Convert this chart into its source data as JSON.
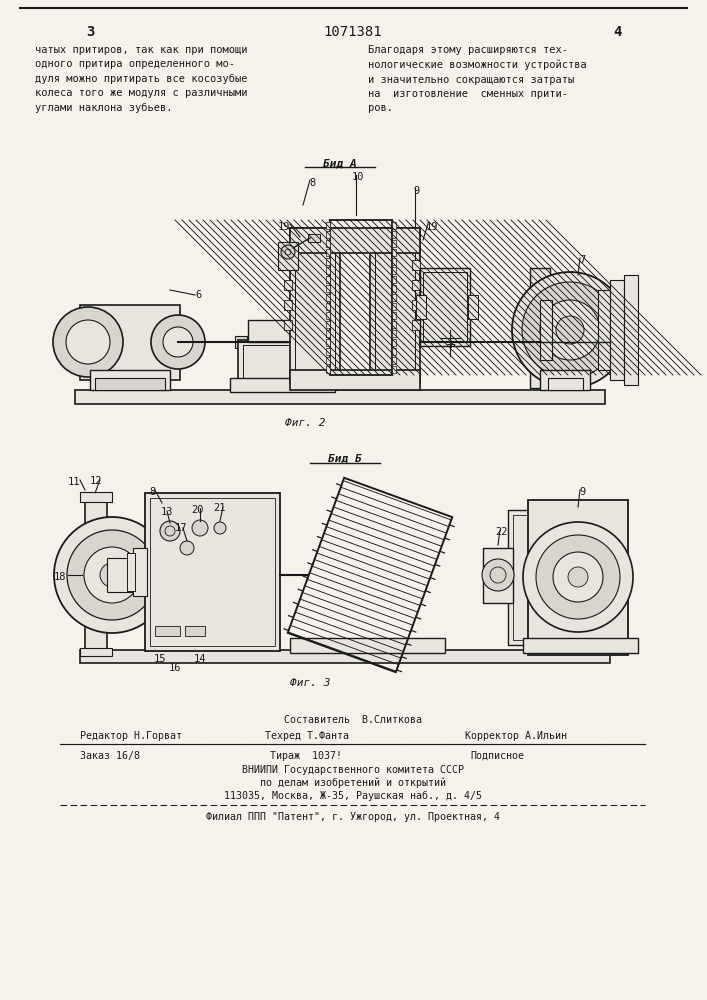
{
  "page_number_left": "3",
  "page_number_center": "1071381",
  "page_number_right": "4",
  "text_left_col": "чатых притиров, так как при помощи\nодного притира определенного мо-\nдуля можно притирать все косозубые\nколеса того же модуля с различными\nуглами наклона зубьев.",
  "text_right_col": "Благодаря этому расширяются тех-\nнологические возможности устройства\nи значительно сокращаются затраты\nна  изготовление  сменных прити-\nров.",
  "view_a_label": "Бид A",
  "fig2_label": "Фиг. 2",
  "view_b_label": "Бид Б",
  "fig3_label": "Фиг. 3",
  "footer_composer": "Составитель  В.Слиткова",
  "footer_editor": "Редактор Н.Горват",
  "footer_techred": "Техред Т.Фанта",
  "footer_corrector": "Корректор А.Ильин",
  "footer_order": "Заказ 16/8",
  "footer_tirazh": "Тираж  1037!",
  "footer_podpisnoe": "Подписное",
  "footer_vniipи": "ВНИИПИ Государственного комитета СССР",
  "footer_po_delam": "по делам изобретений и открытий",
  "footer_address": "113035, Москва, Ж-35, Раушская наб., д. 4/5",
  "footer_filial": "Филиал ППП \"Патент\", г. Ужгород, ул. Проектная, 4",
  "bg_color": "#f5f2ec",
  "text_color": "#1a1a1a",
  "line_color": "#1a1a1a",
  "fill_light": "#e8e5de",
  "fill_medium": "#d8d5ce",
  "fill_dark": "#c8c5be"
}
